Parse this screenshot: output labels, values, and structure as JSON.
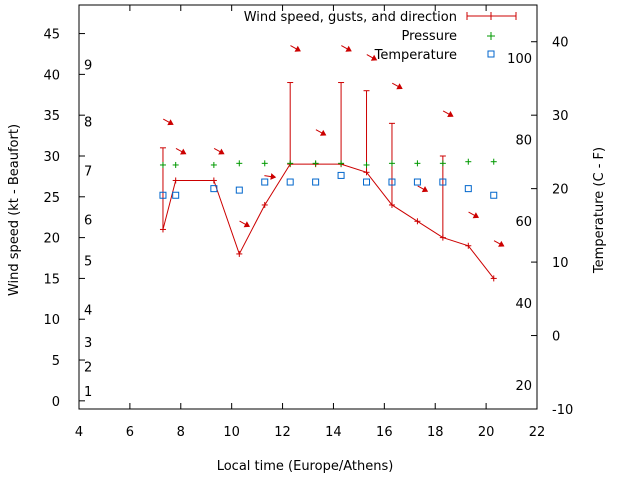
{
  "chart_data": {
    "type": "line",
    "xlabel": "Local time (Europe/Athens)",
    "ylabel": "Wind speed (kt - Beaufort)",
    "y2label": "Temperature (C - F)",
    "xlim": [
      4,
      22
    ],
    "ylim": [
      -1,
      48.5
    ],
    "y2lim": [
      -10,
      45
    ],
    "x_ticks": [
      "4",
      "6",
      "8",
      "10",
      "12",
      "14",
      "16",
      "18",
      "20",
      "22"
    ],
    "y_ticks": [
      "0",
      "5",
      "10",
      "15",
      "20",
      "25",
      "30",
      "35",
      "40",
      "45"
    ],
    "y2_ticks": [
      "-10",
      "0",
      "10",
      "20",
      "30",
      "40"
    ],
    "beaufort_labels": [
      {
        "label": "1",
        "wind": 1.2
      },
      {
        "label": "2",
        "wind": 4.2
      },
      {
        "label": "3",
        "wind": 7.2
      },
      {
        "label": "4",
        "wind": 11.2
      },
      {
        "label": "5",
        "wind": 17.2
      },
      {
        "label": "6",
        "wind": 22.2
      },
      {
        "label": "7",
        "wind": 28.2
      },
      {
        "label": "8",
        "wind": 34.2
      },
      {
        "label": "9",
        "wind": 41.2
      }
    ],
    "fahrenheit_labels": [
      {
        "label": "20",
        "temp": -6.7
      },
      {
        "label": "40",
        "temp": 4.4
      },
      {
        "label": "60",
        "temp": 15.6
      },
      {
        "label": "80",
        "temp": 26.7
      },
      {
        "label": "100",
        "temp": 37.8
      }
    ],
    "colors": {
      "wind": "#cc0000",
      "pressure": "#009900",
      "temperature": "#0066cc"
    },
    "series": [
      {
        "name": "Wind speed, gusts, and direction",
        "x": [
          7.3,
          7.8,
          9.3,
          10.3,
          11.3,
          12.3,
          13.3,
          14.3,
          15.3,
          16.3,
          17.3,
          18.3,
          19.3,
          20.3
        ],
        "values": [
          21,
          27,
          27,
          18,
          24,
          29,
          29,
          29,
          28,
          24,
          22,
          20,
          19,
          15
        ],
        "gusts": [
          31,
          27,
          27,
          18,
          24,
          39,
          29,
          39,
          38,
          34,
          22,
          30,
          19,
          15
        ]
      },
      {
        "name": "Pressure",
        "x": [
          7.3,
          7.8,
          9.3,
          10.3,
          11.3,
          12.3,
          13.3,
          14.3,
          15.3,
          16.3,
          17.3,
          18.3,
          19.3,
          20.3
        ],
        "values": [
          28.9,
          28.9,
          28.9,
          29.1,
          29.1,
          29.1,
          29.1,
          29.1,
          28.9,
          29.1,
          29.1,
          29.1,
          29.3,
          29.3
        ]
      },
      {
        "name": "Temperature",
        "x": [
          7.3,
          7.8,
          9.3,
          10.3,
          11.3,
          12.3,
          13.3,
          14.3,
          15.3,
          16.3,
          17.3,
          18.3,
          19.3,
          20.3
        ],
        "values": [
          19.1,
          19.1,
          20.0,
          19.8,
          20.9,
          20.9,
          20.9,
          21.8,
          20.9,
          20.9,
          20.9,
          20.9,
          20.0,
          19.1
        ]
      }
    ],
    "wind_direction_arrows": [
      {
        "x": 7.5,
        "wind": 34.2,
        "dir": "southeast"
      },
      {
        "x": 8.0,
        "wind": 30.6,
        "dir": "southeast"
      },
      {
        "x": 9.5,
        "wind": 30.6,
        "dir": "southeast"
      },
      {
        "x": 10.5,
        "wind": 21.7,
        "dir": "southeast"
      },
      {
        "x": 11.5,
        "wind": 27.5,
        "dir": "east"
      },
      {
        "x": 12.5,
        "wind": 43.2,
        "dir": "southeast"
      },
      {
        "x": 13.5,
        "wind": 32.9,
        "dir": "southeast"
      },
      {
        "x": 14.5,
        "wind": 43.2,
        "dir": "southeast"
      },
      {
        "x": 15.5,
        "wind": 42.1,
        "dir": "southeast"
      },
      {
        "x": 16.5,
        "wind": 38.6,
        "dir": "southeast"
      },
      {
        "x": 17.5,
        "wind": 26.0,
        "dir": "southeast"
      },
      {
        "x": 18.5,
        "wind": 35.2,
        "dir": "southeast"
      },
      {
        "x": 19.5,
        "wind": 22.8,
        "dir": "southeast"
      },
      {
        "x": 20.5,
        "wind": 19.3,
        "dir": "southeast"
      }
    ]
  }
}
